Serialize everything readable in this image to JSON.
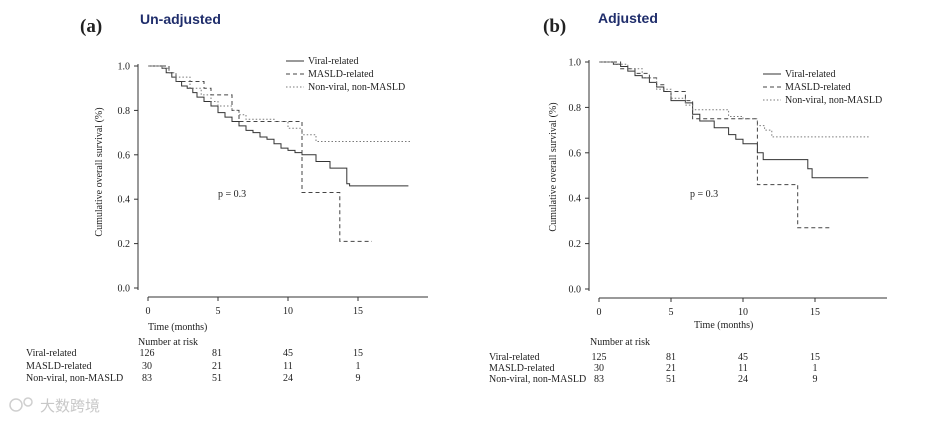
{
  "watermark": "大数跨境",
  "chart_data": [
    {
      "type": "line",
      "panel_label": "(a)",
      "title": "Un-adjusted",
      "xlabel": "Time (months)",
      "ylabel": "Cumulative overall survival (%)",
      "xlim": [
        0,
        19
      ],
      "ylim": [
        0,
        1
      ],
      "xticks": [
        "0",
        "5",
        "10",
        "15"
      ],
      "yticks": [
        "0.0",
        "0.2",
        "0.4",
        "0.6",
        "0.8",
        "1.0"
      ],
      "pvalue": "p = 0.3",
      "legend_position": "top-right",
      "series": [
        {
          "name": "Viral-related",
          "style": "solid",
          "points": [
            [
              0,
              1
            ],
            [
              1,
              0.99
            ],
            [
              1.3,
              0.97
            ],
            [
              1.7,
              0.95
            ],
            [
              2,
              0.93
            ],
            [
              2.4,
              0.91
            ],
            [
              2.8,
              0.9
            ],
            [
              3.2,
              0.88
            ],
            [
              3.5,
              0.86
            ],
            [
              4,
              0.84
            ],
            [
              4.5,
              0.82
            ],
            [
              5,
              0.79
            ],
            [
              5.5,
              0.77
            ],
            [
              6,
              0.75
            ],
            [
              6.5,
              0.73
            ],
            [
              7,
              0.71
            ],
            [
              7.5,
              0.7
            ],
            [
              8,
              0.68
            ],
            [
              8.5,
              0.67
            ],
            [
              9,
              0.65
            ],
            [
              9.5,
              0.63
            ],
            [
              10,
              0.62
            ],
            [
              10.5,
              0.61
            ],
            [
              11,
              0.6
            ],
            [
              12,
              0.57
            ],
            [
              13,
              0.54
            ],
            [
              14.2,
              0.47
            ],
            [
              14.4,
              0.46
            ],
            [
              18.6,
              0.46
            ]
          ]
        },
        {
          "name": "MASLD-related",
          "style": "dashed",
          "points": [
            [
              0,
              1
            ],
            [
              1.5,
              0.97
            ],
            [
              2,
              0.93
            ],
            [
              3.5,
              0.93
            ],
            [
              4,
              0.9
            ],
            [
              4.5,
              0.87
            ],
            [
              6,
              0.8
            ],
            [
              6.5,
              0.75
            ],
            [
              10.5,
              0.75
            ],
            [
              11,
              0.43
            ],
            [
              13.5,
              0.43
            ],
            [
              13.7,
              0.21
            ],
            [
              16,
              0.21
            ]
          ]
        },
        {
          "name": "Non-viral, non-MASLD",
          "style": "dotted",
          "points": [
            [
              0,
              1
            ],
            [
              1,
              0.99
            ],
            [
              1.5,
              0.97
            ],
            [
              2,
              0.95
            ],
            [
              3,
              0.9
            ],
            [
              3.8,
              0.87
            ],
            [
              4.5,
              0.84
            ],
            [
              5,
              0.82
            ],
            [
              6,
              0.8
            ],
            [
              6.5,
              0.78
            ],
            [
              7,
              0.76
            ],
            [
              9,
              0.75
            ],
            [
              10,
              0.72
            ],
            [
              11,
              0.69
            ],
            [
              12,
              0.66
            ],
            [
              18.8,
              0.66
            ]
          ]
        }
      ],
      "risk_table": {
        "header": "Number at risk",
        "rows": [
          {
            "label": "Viral-related",
            "values": [
              "126",
              "81",
              "45",
              "15"
            ]
          },
          {
            "label": "MASLD-related",
            "values": [
              "30",
              "21",
              "11",
              "1"
            ]
          },
          {
            "label": "Non-viral, non-MASLD",
            "values": [
              "83",
              "51",
              "24",
              "9"
            ]
          }
        ]
      }
    },
    {
      "type": "line",
      "panel_label": "(b)",
      "title": "Adjusted",
      "xlabel": "Time (months)",
      "ylabel": "Cumulative overall survival (%)",
      "xlim": [
        0,
        19
      ],
      "ylim": [
        0,
        1
      ],
      "xticks": [
        "0",
        "5",
        "10",
        "15"
      ],
      "yticks": [
        "0.0",
        "0.2",
        "0.4",
        "0.6",
        "0.8",
        "1.0"
      ],
      "pvalue": "p = 0.3",
      "legend_position": "top-right",
      "series": [
        {
          "name": "Viral-related",
          "style": "solid",
          "points": [
            [
              0,
              1
            ],
            [
              1,
              0.99
            ],
            [
              1.5,
              0.98
            ],
            [
              2,
              0.96
            ],
            [
              2.5,
              0.94
            ],
            [
              3,
              0.93
            ],
            [
              3.5,
              0.91
            ],
            [
              4,
              0.89
            ],
            [
              4.5,
              0.87
            ],
            [
              5,
              0.83
            ],
            [
              6,
              0.82
            ],
            [
              6.5,
              0.77
            ],
            [
              7,
              0.74
            ],
            [
              8,
              0.71
            ],
            [
              9,
              0.68
            ],
            [
              9.5,
              0.66
            ],
            [
              10,
              0.64
            ],
            [
              11,
              0.6
            ],
            [
              11.4,
              0.57
            ],
            [
              13,
              0.57
            ],
            [
              14.5,
              0.53
            ],
            [
              14.8,
              0.49
            ],
            [
              18.7,
              0.49
            ]
          ]
        },
        {
          "name": "MASLD-related",
          "style": "dashed",
          "points": [
            [
              0,
              1
            ],
            [
              1.5,
              0.97
            ],
            [
              2.5,
              0.95
            ],
            [
              3.5,
              0.93
            ],
            [
              4,
              0.9
            ],
            [
              4.5,
              0.87
            ],
            [
              6,
              0.83
            ],
            [
              6.5,
              0.75
            ],
            [
              10.5,
              0.75
            ],
            [
              11,
              0.46
            ],
            [
              13.5,
              0.46
            ],
            [
              13.8,
              0.27
            ],
            [
              16,
              0.27
            ]
          ]
        },
        {
          "name": "Non-viral, non-MASLD",
          "style": "dotted",
          "points": [
            [
              0,
              1
            ],
            [
              1,
              0.99
            ],
            [
              2,
              0.97
            ],
            [
              3,
              0.93
            ],
            [
              4,
              0.88
            ],
            [
              5,
              0.84
            ],
            [
              6,
              0.81
            ],
            [
              6.5,
              0.79
            ],
            [
              9,
              0.76
            ],
            [
              10,
              0.75
            ],
            [
              11,
              0.72
            ],
            [
              11.5,
              0.7
            ],
            [
              12,
              0.67
            ],
            [
              18.8,
              0.67
            ]
          ]
        }
      ],
      "risk_table": {
        "header": "Number at risk",
        "rows": [
          {
            "label": "Viral-related",
            "values": [
              "125",
              "81",
              "45",
              "15"
            ]
          },
          {
            "label": "MASLD-related",
            "values": [
              "30",
              "21",
              "11",
              "1"
            ]
          },
          {
            "label": "Non-viral, non-MASLD",
            "values": [
              "83",
              "51",
              "24",
              "9"
            ]
          }
        ]
      }
    }
  ]
}
